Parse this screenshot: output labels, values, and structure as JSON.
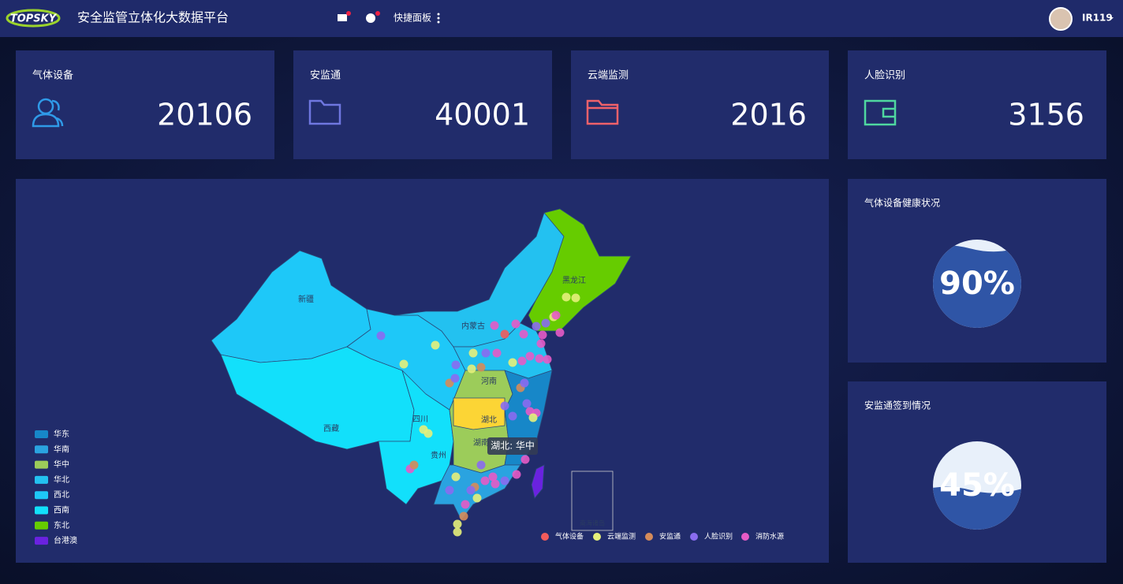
{
  "header": {
    "logo": "TOPSKY",
    "title": "安全监管立体化大数据平台",
    "quick_panel": "快捷面板",
    "user": "IR119"
  },
  "cards": [
    {
      "label": "气体设备",
      "value": "20106"
    },
    {
      "label": "安监通",
      "value": "40001"
    },
    {
      "label": "云端监测",
      "value": "2016"
    },
    {
      "label": "人脸识别",
      "value": "3156"
    }
  ],
  "map": {
    "legend": [
      {
        "name": "华东",
        "color": "#1787c8"
      },
      {
        "name": "华南",
        "color": "#2aa3e0"
      },
      {
        "name": "华中",
        "color": "#9ccc5a"
      },
      {
        "name": "华北",
        "color": "#23c1f0"
      },
      {
        "name": "西北",
        "color": "#1ec8f8"
      },
      {
        "name": "西南",
        "color": "#12e0fb"
      },
      {
        "name": "东北",
        "color": "#66cc00"
      },
      {
        "name": "台港澳",
        "color": "#6a22e0"
      }
    ],
    "labels": [
      "新疆",
      "西藏",
      "内蒙古",
      "黑龙江",
      "四川",
      "贵州",
      "河南",
      "湖北",
      "湖南",
      "南海诸岛"
    ],
    "tooltip": "湖北: 华中",
    "scatter_legend": [
      {
        "name": "气体设备",
        "color": "#f25b5b"
      },
      {
        "name": "云端监测",
        "color": "#e6f07a"
      },
      {
        "name": "安监通",
        "color": "#d58b5a"
      },
      {
        "name": "人脸识别",
        "color": "#8a6cf0"
      },
      {
        "name": "消防水源",
        "color": "#e65bc6"
      }
    ]
  },
  "gauges": [
    {
      "title": "气体设备健康状况",
      "value": 90,
      "label": "90%"
    },
    {
      "title": "安监通签到情况",
      "value": 45,
      "label": "45%"
    }
  ]
}
